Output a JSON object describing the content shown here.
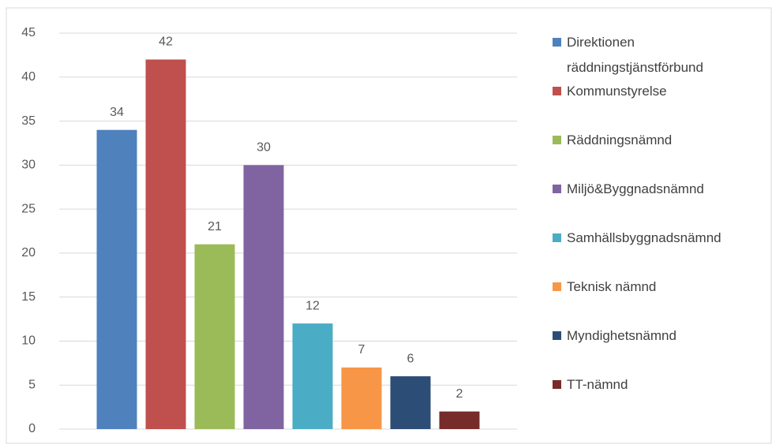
{
  "chart_data": {
    "type": "bar",
    "series": [
      {
        "name": "Direktionen räddningstjänstförbund",
        "color": "#4f81bd",
        "values": [
          34
        ]
      },
      {
        "name": "Kommunstyrelse",
        "color": "#c0504d",
        "values": [
          42
        ]
      },
      {
        "name": "Räddningsnämnd",
        "color": "#9bbb59",
        "values": [
          21
        ]
      },
      {
        "name": "Miljö&Byggnadsnämnd",
        "color": "#8064a2",
        "values": [
          30
        ]
      },
      {
        "name": "Samhällsbyggnadsnämnd",
        "color": "#4bacc6",
        "values": [
          12
        ]
      },
      {
        "name": "Teknisk nämnd",
        "color": "#f79646",
        "values": [
          7
        ]
      },
      {
        "name": "Myndighetsnämnd",
        "color": "#2c4d75",
        "values": [
          6
        ]
      },
      {
        "name": "TT-nämnd",
        "color": "#772c2a",
        "values": [
          2
        ]
      }
    ],
    "ylim": [
      0,
      45
    ],
    "yticks": [
      0,
      5,
      10,
      15,
      20,
      25,
      30,
      35,
      40,
      45
    ],
    "grid": true,
    "legend": "right"
  }
}
